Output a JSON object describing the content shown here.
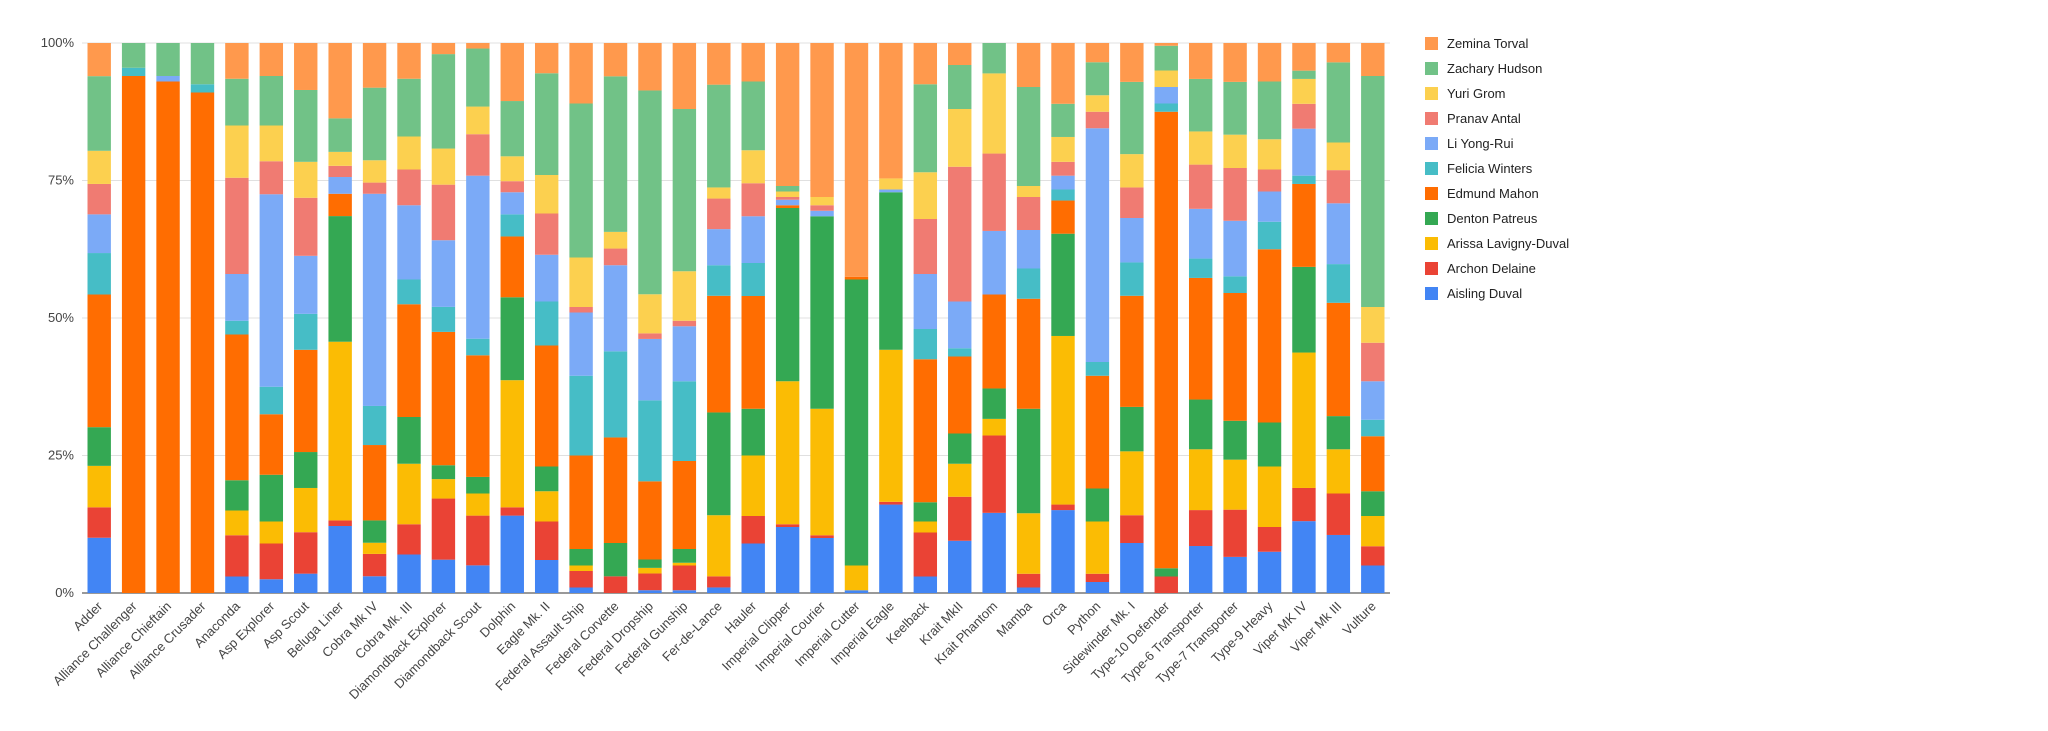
{
  "chart_data": {
    "type": "bar",
    "stacked": "percent",
    "ylim": [
      0,
      100
    ],
    "yticks": [
      "0%",
      "25%",
      "50%",
      "75%",
      "100%"
    ],
    "grid": true,
    "legend_position": "right",
    "categories": [
      "Adder",
      "Alliance Challenger",
      "Alliance Chieftain",
      "Alliance Crusader",
      "Anaconda",
      "Asp Explorer",
      "Asp Scout",
      "Beluga Liner",
      "Cobra Mk IV",
      "Cobra Mk. III",
      "Diamondback Explorer",
      "Diamondback Scout",
      "Dolphin",
      "Eagle Mk. II",
      "Federal Assault Ship",
      "Federal Corvette",
      "Federal Dropship",
      "Federal Gunship",
      "Fer-de-Lance",
      "Hauler",
      "Imperial Clipper",
      "Imperial Courier",
      "Imperial Cutter",
      "Imperial Eagle",
      "Keelback",
      "Krait MkII",
      "Krait Phantom",
      "Mamba",
      "Orca",
      "Python",
      "Sidewinder Mk. I",
      "Type-10 Defender",
      "Type-6 Transporter",
      "Type-7 Transporter",
      "Type-9 Heavy",
      "Viper MK IV",
      "Viper Mk III",
      "Vulture"
    ],
    "series": [
      {
        "name": "Aisling Duval",
        "color": "#4285f4",
        "values": [
          10,
          0,
          0,
          0,
          3,
          2.5,
          3.5,
          12,
          3,
          7,
          6,
          5,
          14,
          6,
          1,
          0,
          0.5,
          0.5,
          1,
          9,
          12,
          10,
          0.5,
          16,
          3,
          9.5,
          14.5,
          1,
          15,
          2,
          9,
          0,
          8.5,
          6.5,
          7.5,
          13,
          10.5,
          5
        ]
      },
      {
        "name": "Archon Delaine",
        "color": "#ea4335",
        "values": [
          5.5,
          0,
          0,
          0,
          7.5,
          6.5,
          7.5,
          1,
          4,
          5.5,
          11,
          9,
          1.5,
          7,
          3,
          3,
          3,
          4.5,
          2,
          5,
          0.5,
          0.5,
          0,
          0.5,
          8,
          8,
          14,
          2.5,
          1,
          1.5,
          5,
          3,
          6.5,
          8.5,
          4.5,
          6,
          7.5,
          3.5
        ]
      },
      {
        "name": "Arissa Lavigny-Duval",
        "color": "#fbbc04",
        "values": [
          7.5,
          0,
          0,
          0,
          4.5,
          4,
          8,
          32,
          2,
          11,
          3.5,
          4,
          23,
          5.5,
          1,
          0,
          1,
          0.5,
          11,
          11,
          26,
          23,
          4.5,
          27.5,
          2,
          6,
          3,
          11,
          30.5,
          9.5,
          11.5,
          0,
          11,
          9,
          11,
          24.5,
          8,
          5.5
        ]
      },
      {
        "name": "Denton Patreus",
        "color": "#34a853",
        "values": [
          7,
          0,
          0,
          0,
          5.5,
          8.5,
          6.5,
          22.5,
          4,
          8.5,
          2.5,
          3,
          15,
          4.5,
          3,
          6,
          1.5,
          2.5,
          18.5,
          8.5,
          31.5,
          35,
          52,
          28.5,
          3.5,
          5.5,
          5.5,
          19,
          18.5,
          6,
          8,
          1.5,
          9,
          7,
          8,
          15.5,
          6,
          4.5
        ]
      },
      {
        "name": "Edmund Mahon",
        "color": "#ff6d01",
        "values": [
          24,
          94,
          93,
          91,
          26.5,
          11,
          18.5,
          4,
          13.5,
          20.5,
          24,
          22,
          11,
          22,
          17,
          19,
          14,
          16,
          21,
          20.5,
          0.5,
          0,
          0.5,
          0,
          26,
          14,
          17,
          20,
          6,
          20.5,
          20,
          83,
          22,
          23,
          31.5,
          15,
          20.5,
          10
        ]
      },
      {
        "name": "Felicia Winters",
        "color": "#46bdc6",
        "values": [
          7.5,
          1.5,
          0,
          1.5,
          2.5,
          5,
          6.5,
          0,
          7,
          4.5,
          4.5,
          3,
          4,
          8,
          14.5,
          15.5,
          14.5,
          14.5,
          5.5,
          6,
          0,
          0,
          0,
          0,
          5.5,
          1.5,
          0,
          5.5,
          2,
          2.5,
          6,
          1.5,
          3.5,
          3,
          5,
          1.5,
          7,
          3
        ]
      },
      {
        "name": "Li Yong-Rui",
        "color": "#7baaf7",
        "values": [
          7,
          0,
          1,
          0,
          8.5,
          35,
          10.5,
          3,
          38,
          13.5,
          12,
          29.5,
          4,
          8.5,
          11.5,
          15.5,
          11,
          10,
          6.5,
          8.5,
          1,
          1,
          0,
          0.5,
          10,
          8.5,
          11.5,
          7,
          2.5,
          42.5,
          8,
          3,
          9,
          10,
          5.5,
          8.5,
          11,
          7
        ]
      },
      {
        "name": "Pranav Antal",
        "color": "#f07b72",
        "values": [
          5.5,
          0,
          0,
          0,
          17.5,
          6,
          10.5,
          2,
          2,
          6.5,
          10,
          7.5,
          2,
          7.5,
          1,
          3,
          1,
          1,
          5.5,
          6,
          0.5,
          1,
          0,
          0,
          10,
          24.5,
          14,
          6,
          2.5,
          3,
          5.5,
          0,
          8,
          9.5,
          4,
          4.5,
          6,
          7
        ]
      },
      {
        "name": "Yuri Grom",
        "color": "#fcd04f",
        "values": [
          6,
          0,
          0,
          0,
          9.5,
          6.5,
          6.5,
          2.5,
          4,
          6,
          6.5,
          5,
          4.5,
          7,
          9,
          3,
          7,
          9,
          2,
          6,
          1,
          1.5,
          0,
          2,
          8.5,
          10.5,
          14.5,
          2,
          4.5,
          3,
          6,
          3,
          6,
          6,
          5.5,
          4.5,
          5,
          6.5
        ]
      },
      {
        "name": "Zachary Hudson",
        "color": "#71c287",
        "values": [
          13.5,
          4.5,
          6,
          7.5,
          8.5,
          9,
          13,
          6,
          13,
          10.5,
          17,
          10.5,
          10,
          18.5,
          28,
          28,
          36.5,
          29.5,
          18.5,
          12.5,
          1,
          0,
          0,
          0,
          16,
          8,
          5.5,
          18,
          6,
          6,
          13,
          4.5,
          9.5,
          9.5,
          10.5,
          1.5,
          14.5,
          42
        ]
      },
      {
        "name": "Zemina Torval",
        "color": "#ff994d",
        "values": [
          6,
          0,
          0,
          0,
          6.5,
          6,
          8.5,
          13.5,
          8,
          6.5,
          2,
          1,
          10.5,
          5.5,
          11,
          6,
          8.5,
          12,
          7.5,
          7,
          26,
          28,
          42.5,
          24.5,
          7.5,
          4,
          0,
          8,
          11,
          3.5,
          7,
          0.5,
          6.5,
          7,
          7,
          5,
          3.5,
          6
        ]
      }
    ]
  }
}
